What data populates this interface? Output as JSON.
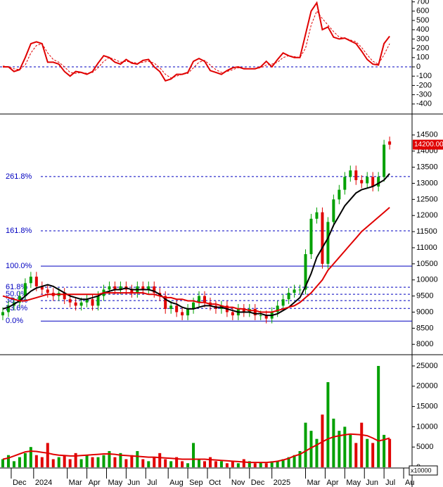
{
  "chart_data": [
    {
      "type": "line",
      "xlim": [
        -0.5,
        73
      ],
      "ylim": [
        -500,
        720
      ],
      "yticks": [
        700,
        600,
        500,
        400,
        300,
        200,
        100,
        0,
        -100,
        -200,
        -300,
        -400
      ],
      "zero_line": true,
      "zero_line_color": "#0000c0",
      "series": [
        {
          "color": "#e00000",
          "dashed": false,
          "values": [
            0,
            0,
            -50,
            -30,
            100,
            250,
            270,
            250,
            50,
            50,
            30,
            -50,
            -100,
            -50,
            -60,
            -80,
            -50,
            40,
            120,
            100,
            50,
            30,
            80,
            40,
            30,
            70,
            80,
            0,
            -50,
            -150,
            -130,
            -80,
            -80,
            -60,
            60,
            90,
            60,
            -40,
            -60,
            -80,
            -40,
            -10,
            0,
            -20,
            -20,
            -20,
            0,
            60,
            0,
            80,
            150,
            120,
            100,
            100,
            350,
            600,
            690,
            400,
            430,
            320,
            300,
            310,
            280,
            250,
            170,
            80,
            30,
            20,
            250,
            330
          ]
        },
        {
          "color": "#e00000",
          "dashed": true,
          "values": [
            10,
            0,
            -20,
            -30,
            20,
            150,
            230,
            250,
            150,
            80,
            50,
            0,
            -60,
            -70,
            -60,
            -70,
            -60,
            -10,
            60,
            100,
            80,
            50,
            60,
            50,
            40,
            50,
            60,
            40,
            -10,
            -80,
            -120,
            -100,
            -80,
            -70,
            -10,
            50,
            70,
            20,
            -30,
            -60,
            -50,
            -30,
            -10,
            -15,
            -20,
            -20,
            -10,
            20,
            30,
            50,
            100,
            120,
            110,
            100,
            200,
            450,
            600,
            520,
            450,
            380,
            320,
            310,
            290,
            270,
            210,
            130,
            60,
            30,
            130,
            250
          ]
        }
      ]
    },
    {
      "type": "candlestick",
      "xlim": [
        -0.5,
        73
      ],
      "ylim": [
        7700,
        15130
      ],
      "yticks": [
        14500,
        14000,
        13500,
        13000,
        12500,
        12000,
        11500,
        11000,
        10500,
        10000,
        9500,
        9000,
        8500,
        8000
      ],
      "up_color": "#00a000",
      "down_color": "#e00000",
      "open": [
        8900,
        9000,
        9200,
        9300,
        9500,
        9900,
        10100,
        9800,
        9700,
        9600,
        9500,
        9600,
        9400,
        9300,
        9200,
        9300,
        9400,
        9200,
        9500,
        9700,
        9800,
        9700,
        9800,
        9700,
        9600,
        9800,
        9700,
        9800,
        9600,
        9500,
        9100,
        9200,
        9000,
        8900,
        9100,
        9300,
        9500,
        9300,
        9200,
        9100,
        9200,
        9000,
        8900,
        9100,
        9000,
        9100,
        8900,
        8900,
        8800,
        9000,
        9200,
        9400,
        9600,
        9700,
        9700,
        10800,
        11900,
        12100,
        10500,
        11800,
        12500,
        12800,
        13200,
        13400,
        13100,
        13000,
        13200,
        12900,
        13200,
        14300
      ],
      "high": [
        9150,
        9350,
        9450,
        9650,
        10050,
        10250,
        10250,
        9950,
        9850,
        9750,
        9750,
        9750,
        9550,
        9450,
        9450,
        9550,
        9550,
        9650,
        9850,
        9950,
        9950,
        9950,
        9950,
        9850,
        9950,
        9950,
        9950,
        9950,
        9750,
        9650,
        9350,
        9350,
        9150,
        9250,
        9450,
        9650,
        9650,
        9450,
        9350,
        9350,
        9350,
        9150,
        9250,
        9250,
        9250,
        9250,
        9050,
        9050,
        9150,
        9350,
        9550,
        9750,
        9850,
        9850,
        10950,
        12050,
        12250,
        12250,
        11950,
        12650,
        12950,
        13350,
        13550,
        13550,
        13250,
        13350,
        13350,
        13350,
        14350,
        14450
      ],
      "low": [
        8750,
        8850,
        9050,
        9150,
        9350,
        9750,
        9650,
        9550,
        9450,
        9350,
        9350,
        9250,
        9150,
        9050,
        9050,
        9150,
        9050,
        9050,
        9350,
        9550,
        9550,
        9550,
        9550,
        9450,
        9450,
        9550,
        9550,
        9450,
        9350,
        8950,
        8950,
        8850,
        8750,
        8750,
        8950,
        9150,
        9150,
        9050,
        8950,
        8950,
        8850,
        8750,
        8750,
        8850,
        8850,
        8750,
        8750,
        8650,
        8650,
        8850,
        9050,
        9250,
        9450,
        9550,
        9550,
        10650,
        11750,
        10350,
        10350,
        11650,
        12350,
        12650,
        13050,
        12950,
        12850,
        12850,
        12750,
        12750,
        13050,
        14050
      ],
      "close": [
        9000,
        9200,
        9300,
        9500,
        9900,
        10100,
        9800,
        9700,
        9600,
        9500,
        9600,
        9400,
        9300,
        9200,
        9300,
        9400,
        9200,
        9500,
        9700,
        9800,
        9700,
        9800,
        9700,
        9600,
        9800,
        9700,
        9800,
        9600,
        9500,
        9100,
        9200,
        9000,
        8900,
        9100,
        9300,
        9500,
        9300,
        9200,
        9100,
        9200,
        9000,
        8900,
        9100,
        9000,
        9100,
        8900,
        8900,
        8800,
        9000,
        9200,
        9400,
        9600,
        9700,
        9700,
        10800,
        11900,
        12100,
        10500,
        11800,
        12500,
        12800,
        13200,
        13400,
        13100,
        13000,
        13200,
        12900,
        13200,
        14200,
        14200
      ],
      "moving_averages": [
        {
          "color": "#000000",
          "values": [
            9100,
            9150,
            9250,
            9350,
            9500,
            9650,
            9750,
            9800,
            9850,
            9800,
            9700,
            9600,
            9500,
            9450,
            9400,
            9400,
            9450,
            9500,
            9600,
            9650,
            9700,
            9700,
            9750,
            9700,
            9700,
            9700,
            9700,
            9650,
            9550,
            9400,
            9300,
            9250,
            9150,
            9100,
            9100,
            9150,
            9200,
            9200,
            9150,
            9150,
            9100,
            9050,
            9000,
            9000,
            9000,
            8950,
            8950,
            8900,
            8900,
            8950,
            9050,
            9150,
            9300,
            9450,
            9800,
            10200,
            10700,
            11000,
            11300,
            11700,
            12000,
            12300,
            12500,
            12700,
            12800,
            12850,
            12900,
            13000,
            13100,
            13300
          ]
        },
        {
          "color": "#e00000",
          "values": [
            9500,
            9450,
            9400,
            9350,
            9350,
            9400,
            9450,
            9500,
            9550,
            9550,
            9550,
            9550,
            9550,
            9550,
            9550,
            9550,
            9550,
            9550,
            9600,
            9600,
            9600,
            9600,
            9600,
            9600,
            9600,
            9600,
            9550,
            9550,
            9500,
            9450,
            9450,
            9400,
            9400,
            9350,
            9350,
            9300,
            9300,
            9250,
            9250,
            9200,
            9150,
            9150,
            9100,
            9100,
            9050,
            9050,
            9000,
            9000,
            9000,
            9050,
            9100,
            9150,
            9200,
            9300,
            9450,
            9600,
            9800,
            10000,
            10300,
            10500,
            10700,
            10900,
            11100,
            11300,
            11500,
            11650,
            11800,
            11950,
            12100,
            12250
          ]
        }
      ],
      "fib_color": "#0000c0",
      "fib_levels": [
        {
          "label": "261.8%",
          "value": 13209,
          "dashed": true
        },
        {
          "label": "161.8%",
          "value": 11524,
          "dashed": true
        },
        {
          "label": "100.0%",
          "value": 10429,
          "dashed": false
        },
        {
          "label": "61.8%",
          "value": 9773,
          "dashed": true
        },
        {
          "label": "50.0%",
          "value": 9554,
          "dashed": true
        },
        {
          "label": "38.2%",
          "value": 9357,
          "dashed": true
        },
        {
          "label": "23.6%",
          "value": 9116,
          "dashed": true
        },
        {
          "label": "0.0%",
          "value": 8722,
          "dashed": false
        }
      ],
      "last_price": {
        "value": 14200,
        "label": "14200.00"
      }
    },
    {
      "type": "bar",
      "xlim": [
        -0.5,
        73
      ],
      "ylim": [
        0,
        27600
      ],
      "yticks": [
        25000,
        20000,
        15000,
        10000,
        5000,
        0
      ],
      "unit_label": "x10000",
      "values": [
        2000,
        3000,
        1500,
        2500,
        3500,
        5000,
        3000,
        2500,
        6000,
        2000,
        2500,
        3000,
        2000,
        3500,
        2000,
        3000,
        2500,
        2500,
        3000,
        4000,
        2500,
        3500,
        2000,
        3000,
        4000,
        2000,
        1500,
        2500,
        3500,
        2000,
        1500,
        2500,
        1500,
        1000,
        6000,
        2000,
        1500,
        2500,
        1500,
        1500,
        1000,
        1500,
        1000,
        2000,
        1500,
        1000,
        1200,
        1000,
        1500,
        1500,
        2000,
        2500,
        3000,
        4000,
        11000,
        9000,
        7000,
        13000,
        21000,
        12000,
        9000,
        10000,
        8000,
        6000,
        11000,
        7000,
        6000,
        25000,
        8000,
        7000
      ],
      "color": "#00a000",
      "moving_average": {
        "color": "#e00000",
        "values": [
          2000,
          2300,
          2800,
          3300,
          3800,
          4000,
          3900,
          3700,
          3500,
          3200,
          3000,
          2900,
          2800,
          2800,
          2900,
          3000,
          3100,
          3200,
          3300,
          3300,
          3200,
          3000,
          2900,
          2800,
          2700,
          2600,
          2500,
          2500,
          2400,
          2300,
          2200,
          2100,
          2000,
          2000,
          2000,
          2000,
          2000,
          1900,
          1800,
          1700,
          1600,
          1500,
          1400,
          1300,
          1200,
          1200,
          1200,
          1200,
          1300,
          1500,
          1800,
          2200,
          2800,
          3200,
          4000,
          4800,
          5500,
          6300,
          7000,
          7500,
          7800,
          8000,
          8200,
          8100,
          8000,
          7800,
          7200,
          6500,
          6800,
          7200
        ]
      },
      "xticks": [
        {
          "value": 1.5,
          "label": "Dec"
        },
        {
          "value": 5.5,
          "label": "2024"
        },
        {
          "value": 11.5,
          "label": "Mar"
        },
        {
          "value": 15,
          "label": "Apr"
        },
        {
          "value": 18.5,
          "label": "May"
        },
        {
          "value": 22,
          "label": "Jun"
        },
        {
          "value": 25.5,
          "label": "Jul"
        },
        {
          "value": 29.5,
          "label": "Aug"
        },
        {
          "value": 33,
          "label": "Sep"
        },
        {
          "value": 36.5,
          "label": "Oct"
        },
        {
          "value": 40.5,
          "label": "Nov"
        },
        {
          "value": 44,
          "label": "Dec"
        },
        {
          "value": 48,
          "label": "2025"
        },
        {
          "value": 54,
          "label": "Mar"
        },
        {
          "value": 57.5,
          "label": "Apr"
        },
        {
          "value": 61,
          "label": "May"
        },
        {
          "value": 64.5,
          "label": "Jun"
        },
        {
          "value": 68,
          "label": "Jul"
        },
        {
          "value": 71.5,
          "label": "Au"
        }
      ]
    }
  ]
}
